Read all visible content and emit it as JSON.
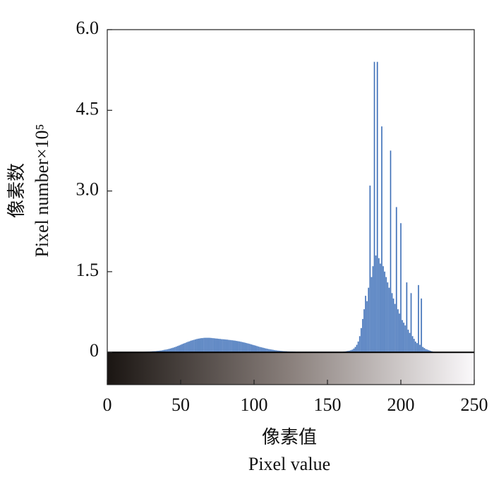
{
  "chart_data": {
    "type": "histogram",
    "ylabel": [
      "像素数",
      "Pixel number×10⁵"
    ],
    "xlabel": [
      "像素值",
      "Pixel value"
    ],
    "color": "#3d6db5",
    "xlim": [
      0,
      250
    ],
    "xticks": [
      0,
      50,
      100,
      150,
      200,
      250
    ],
    "ylim": [
      -0.6,
      6.0
    ],
    "yticks": [
      0,
      1.5,
      {
        "value": 3,
        "label": "3.0"
      },
      4.5,
      {
        "value": 6,
        "label": "6.0"
      }
    ],
    "x": [
      20,
      21,
      22,
      23,
      24,
      25,
      26,
      27,
      28,
      29,
      30,
      31,
      32,
      33,
      34,
      35,
      36,
      37,
      38,
      39,
      40,
      41,
      42,
      43,
      44,
      45,
      46,
      47,
      48,
      49,
      50,
      51,
      52,
      53,
      54,
      55,
      56,
      57,
      58,
      59,
      60,
      61,
      62,
      63,
      64,
      65,
      66,
      67,
      68,
      69,
      70,
      71,
      72,
      73,
      74,
      75,
      76,
      77,
      78,
      79,
      80,
      81,
      82,
      83,
      84,
      85,
      86,
      87,
      88,
      89,
      90,
      91,
      92,
      93,
      94,
      95,
      96,
      97,
      98,
      99,
      100,
      101,
      102,
      103,
      104,
      105,
      106,
      107,
      108,
      109,
      110,
      111,
      112,
      113,
      114,
      115,
      116,
      117,
      118,
      119,
      120,
      121,
      122,
      123,
      124,
      125,
      126,
      127,
      128,
      129,
      130,
      131,
      132,
      133,
      134,
      135,
      136,
      137,
      138,
      139,
      140,
      141,
      142,
      143,
      144,
      145,
      146,
      147,
      148,
      149,
      150,
      151,
      152,
      153,
      154,
      155,
      156,
      157,
      158,
      159,
      160,
      161,
      162,
      163,
      164,
      165,
      166,
      167,
      168,
      169,
      170,
      171,
      172,
      173,
      174,
      175,
      176,
      177,
      178,
      179,
      180,
      181,
      182,
      183,
      184,
      185,
      186,
      187,
      188,
      189,
      190,
      191,
      192,
      193,
      194,
      195,
      196,
      197,
      198,
      199,
      200,
      201,
      202,
      203,
      204,
      205,
      206,
      207,
      208,
      209,
      210,
      211,
      212,
      213,
      214,
      215,
      216,
      217,
      218,
      219,
      220,
      221,
      222
    ],
    "values": [
      0.005,
      0.005,
      0.006,
      0.007,
      0.008,
      0.009,
      0.01,
      0.011,
      0.012,
      0.014,
      0.016,
      0.018,
      0.02,
      0.022,
      0.025,
      0.028,
      0.031,
      0.035,
      0.04,
      0.045,
      0.05,
      0.056,
      0.063,
      0.07,
      0.078,
      0.087,
      0.096,
      0.106,
      0.117,
      0.128,
      0.14,
      0.151,
      0.162,
      0.173,
      0.184,
      0.195,
      0.205,
      0.215,
      0.224,
      0.232,
      0.24,
      0.247,
      0.253,
      0.258,
      0.262,
      0.265,
      0.268,
      0.27,
      0.27,
      0.27,
      0.268,
      0.266,
      0.263,
      0.26,
      0.257,
      0.254,
      0.251,
      0.248,
      0.245,
      0.242,
      0.24,
      0.237,
      0.234,
      0.23,
      0.227,
      0.224,
      0.22,
      0.216,
      0.212,
      0.207,
      0.202,
      0.196,
      0.19,
      0.184,
      0.177,
      0.17,
      0.163,
      0.156,
      0.148,
      0.14,
      0.132,
      0.124,
      0.116,
      0.108,
      0.1,
      0.093,
      0.086,
      0.079,
      0.072,
      0.066,
      0.06,
      0.055,
      0.05,
      0.045,
      0.041,
      0.037,
      0.033,
      0.03,
      0.027,
      0.024,
      0.022,
      0.02,
      0.018,
      0.016,
      0.015,
      0.014,
      0.013,
      0.012,
      0.011,
      0.01,
      0.01,
      0.01,
      0.01,
      0.01,
      0.01,
      0.01,
      0.01,
      0.01,
      0.01,
      0.01,
      0.01,
      0.01,
      0.01,
      0.01,
      0.01,
      0.01,
      0.01,
      0.01,
      0.01,
      0.01,
      0.01,
      0.01,
      0.01,
      0.01,
      0.01,
      0.01,
      0.01,
      0.01,
      0.01,
      0.01,
      0.01,
      0.012,
      0.015,
      0.02,
      0.025,
      0.03,
      0.04,
      0.05,
      0.07,
      0.1,
      0.14,
      0.2,
      0.3,
      0.45,
      0.62,
      0.8,
      1.05,
      0.95,
      1.2,
      3.1,
      1.4,
      1.6,
      5.4,
      1.8,
      5.4,
      1.75,
      1.65,
      4.2,
      1.6,
      1.5,
      1.4,
      1.3,
      1.2,
      3.75,
      1.1,
      1.0,
      0.9,
      2.7,
      0.8,
      0.72,
      2.4,
      0.6,
      0.55,
      0.5,
      1.3,
      0.42,
      0.36,
      1.1,
      0.3,
      0.25,
      0.2,
      0.17,
      1.25,
      0.14,
      1.0,
      0.1,
      0.08,
      0.06,
      0.05,
      0.04,
      0.03,
      0.02,
      0.01
    ]
  }
}
